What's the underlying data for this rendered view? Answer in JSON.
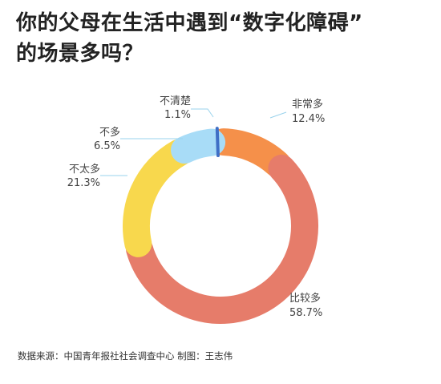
{
  "title_lines": [
    "你的父母在生活中遇到“数字化障碍”",
    "的场景多吗？"
  ],
  "source": "数据来源：中国青年报社社会调查中心 制图：王志伟",
  "chart_data": {
    "type": "pie",
    "variant": "donut",
    "unit": "%",
    "slices": [
      {
        "label": "非常多",
        "value": 12.4,
        "value_text": "12.4%",
        "color": "#f5904a"
      },
      {
        "label": "比较多",
        "value": 58.7,
        "value_text": "58.7%",
        "color": "#e67c6a"
      },
      {
        "label": "不太多",
        "value": 21.3,
        "value_text": "21.3%",
        "color": "#f8d84d"
      },
      {
        "label": "不多",
        "value": 6.5,
        "value_text": "6.5%",
        "color": "#a8dcf7"
      },
      {
        "label": "不清楚",
        "value": 1.1,
        "value_text": "1.1%",
        "color": "#3f6fc6"
      }
    ],
    "leader_color": "#9ad3ec"
  }
}
